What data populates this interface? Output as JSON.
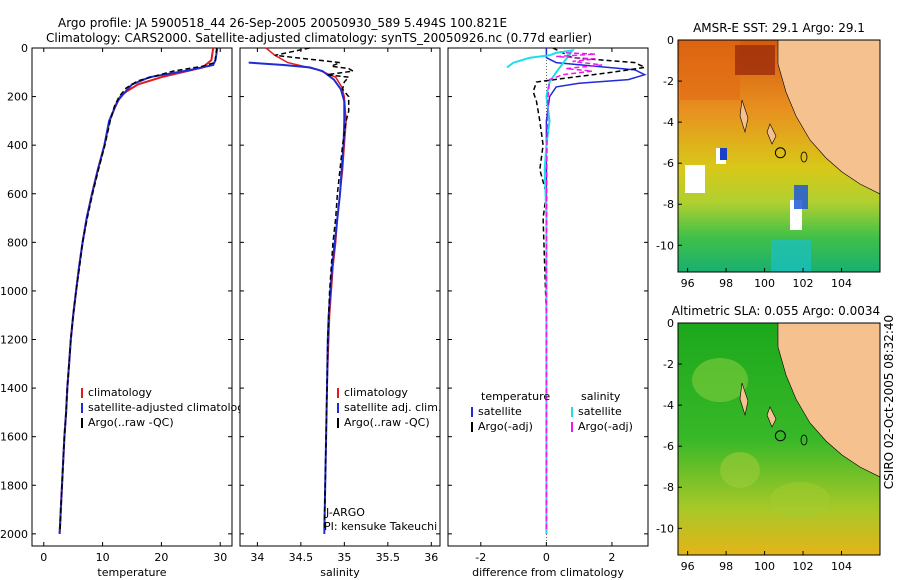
{
  "header": {
    "line1": "Argo profile: JA 5900518_44 26-Sep-2005 20050930_589 5.494S 100.821E",
    "line2": "Climatology: CARS2000. Satellite-adjusted climatology: synTS_20050926.nc (0.77d earlier)"
  },
  "footer": {
    "vertical_stamp": "CSIRO 02-Oct-2005 08:32:40",
    "float_program": "J-ARGO",
    "pi": "PI: kensuke Takeuchi"
  },
  "colors": {
    "climatology": "#e31a1c",
    "satellite": "#1f2bd6",
    "argo": "#000000",
    "temp_satellite_diff": "#19e0e8",
    "salt_argo_diff": "#ee18ee",
    "land": "#f5c28f"
  },
  "chart_data": [
    {
      "id": "temperature",
      "type": "line",
      "xlabel": "temperature",
      "ylabel": "",
      "xlim": [
        -2,
        32
      ],
      "ylim": [
        2050,
        0
      ],
      "xticks": [
        0,
        10,
        20,
        30
      ],
      "xtick_labels": [
        "0",
        "10",
        "20",
        "30"
      ],
      "yticks": [
        0,
        200,
        400,
        600,
        800,
        1000,
        1200,
        1400,
        1600,
        1800,
        2000
      ],
      "ytick_labels": [
        "0",
        "200",
        "400",
        "600",
        "800",
        "1000",
        "1200",
        "1400",
        "1600",
        "1800",
        "2000"
      ],
      "legend": [
        "climatology",
        "satellite-adjusted climatology",
        "Argo(..raw -QC)"
      ],
      "series": [
        {
          "name": "climatology",
          "style": "solid",
          "points": [
            [
              28.8,
              0
            ],
            [
              28.5,
              50
            ],
            [
              27,
              80
            ],
            [
              20,
              120
            ],
            [
              16,
              150
            ],
            [
              14,
              180
            ],
            [
              13,
              200
            ],
            [
              12,
              250
            ],
            [
              11.2,
              300
            ],
            [
              10.3,
              400
            ],
            [
              9.2,
              500
            ],
            [
              8.2,
              600
            ],
            [
              7.3,
              700
            ],
            [
              6.6,
              800
            ],
            [
              6,
              900
            ],
            [
              5.5,
              1000
            ],
            [
              5,
              1100
            ],
            [
              4.6,
              1200
            ],
            [
              4.3,
              1300
            ],
            [
              4,
              1400
            ],
            [
              3.8,
              1500
            ],
            [
              3.5,
              1600
            ],
            [
              3.3,
              1700
            ],
            [
              3.1,
              1800
            ],
            [
              2.9,
              1900
            ],
            [
              2.7,
              2000
            ]
          ]
        },
        {
          "name": "satellite-adjusted climatology",
          "style": "solid",
          "points": [
            [
              29.5,
              0
            ],
            [
              29.2,
              50
            ],
            [
              28.8,
              70
            ],
            [
              25,
              90
            ],
            [
              18,
              120
            ],
            [
              15,
              150
            ],
            [
              13.5,
              190
            ],
            [
              12.5,
              220
            ],
            [
              11.8,
              260
            ],
            [
              11.1,
              300
            ],
            [
              10.3,
              400
            ],
            [
              9.2,
              500
            ],
            [
              8.2,
              600
            ],
            [
              7.3,
              700
            ],
            [
              6.6,
              800
            ],
            [
              6,
              900
            ],
            [
              5.5,
              1000
            ],
            [
              5,
              1100
            ],
            [
              4.6,
              1200
            ],
            [
              4.3,
              1300
            ],
            [
              4,
              1400
            ],
            [
              3.8,
              1500
            ],
            [
              3.5,
              1600
            ],
            [
              3.3,
              1700
            ],
            [
              3.1,
              1800
            ],
            [
              2.9,
              1900
            ],
            [
              2.7,
              2000
            ]
          ]
        },
        {
          "name": "Argo(..raw -QC)",
          "style": "dashed",
          "points": [
            [
              29.4,
              0
            ],
            [
              29.1,
              60
            ],
            [
              27,
              75
            ],
            [
              22,
              95
            ],
            [
              16,
              135
            ],
            [
              14,
              165
            ],
            [
              12.8,
              200
            ],
            [
              12,
              240
            ],
            [
              11.3,
              300
            ],
            [
              10.4,
              400
            ],
            [
              9.3,
              500
            ],
            [
              8.3,
              600
            ],
            [
              7.4,
              700
            ],
            [
              6.6,
              800
            ],
            [
              6.1,
              900
            ],
            [
              5.5,
              1000
            ],
            [
              5,
              1100
            ],
            [
              4.6,
              1200
            ],
            [
              4.3,
              1300
            ],
            [
              4,
              1400
            ],
            [
              3.8,
              1500
            ],
            [
              3.5,
              1600
            ],
            [
              3.3,
              1700
            ],
            [
              3.1,
              1800
            ],
            [
              2.9,
              1900
            ],
            [
              2.8,
              1980
            ]
          ]
        }
      ]
    },
    {
      "id": "salinity",
      "type": "line",
      "xlabel": "salinity",
      "xlim": [
        33.8,
        36.1
      ],
      "ylim": [
        2050,
        0
      ],
      "xticks": [
        34,
        34.5,
        35,
        35.5,
        36
      ],
      "xtick_labels": [
        "34",
        "34.5",
        "35",
        "35.5",
        "36"
      ],
      "legend": [
        "climatology",
        "satellite adj. clim.",
        "Argo(..raw -QC)"
      ],
      "series": [
        {
          "name": "climatology",
          "style": "solid",
          "points": [
            [
              34.1,
              0
            ],
            [
              34.2,
              30
            ],
            [
              34.35,
              60
            ],
            [
              34.7,
              90
            ],
            [
              34.9,
              120
            ],
            [
              34.97,
              160
            ],
            [
              35,
              200
            ],
            [
              35.02,
              300
            ],
            [
              35,
              400
            ],
            [
              34.98,
              500
            ],
            [
              34.95,
              600
            ],
            [
              34.92,
              700
            ],
            [
              34.9,
              800
            ],
            [
              34.87,
              900
            ],
            [
              34.85,
              1000
            ],
            [
              34.83,
              1100
            ],
            [
              34.82,
              1200
            ],
            [
              34.8,
              1400
            ],
            [
              34.79,
              1600
            ],
            [
              34.78,
              1800
            ],
            [
              34.77,
              2000
            ]
          ]
        },
        {
          "name": "satellite adj. clim.",
          "style": "solid",
          "points": [
            [
              33.9,
              60
            ],
            [
              34.3,
              70
            ],
            [
              34.6,
              80
            ],
            [
              34.75,
              95
            ],
            [
              34.88,
              130
            ],
            [
              34.96,
              170
            ],
            [
              35,
              220
            ],
            [
              35,
              300
            ],
            [
              34.99,
              400
            ],
            [
              34.97,
              500
            ],
            [
              34.95,
              600
            ],
            [
              34.92,
              700
            ],
            [
              34.89,
              800
            ],
            [
              34.86,
              900
            ],
            [
              34.84,
              1000
            ],
            [
              34.82,
              1100
            ],
            [
              34.81,
              1200
            ],
            [
              34.8,
              1400
            ],
            [
              34.79,
              1600
            ],
            [
              34.78,
              1800
            ],
            [
              34.77,
              2000
            ]
          ]
        },
        {
          "name": "Argo(..raw -QC)",
          "style": "dashed",
          "points": [
            [
              34.6,
              0
            ],
            [
              34.2,
              30
            ],
            [
              34.95,
              60
            ],
            [
              34.85,
              75
            ],
            [
              35.05,
              85
            ],
            [
              35.1,
              95
            ],
            [
              34.8,
              110
            ],
            [
              35.05,
              120
            ],
            [
              35,
              140
            ],
            [
              34.98,
              170
            ],
            [
              35.05,
              200
            ],
            [
              35.05,
              260
            ],
            [
              35.02,
              300
            ],
            [
              34.98,
              400
            ],
            [
              34.95,
              500
            ],
            [
              34.92,
              600
            ],
            [
              34.9,
              700
            ],
            [
              34.87,
              800
            ],
            [
              34.85,
              900
            ],
            [
              34.83,
              1000
            ],
            [
              34.82,
              1100
            ],
            [
              34.81,
              1200
            ],
            [
              34.8,
              1400
            ],
            [
              34.79,
              1600
            ],
            [
              34.78,
              1800
            ],
            [
              34.77,
              1980
            ]
          ]
        }
      ]
    },
    {
      "id": "difference",
      "type": "line",
      "xlabel": "difference from climatology",
      "xlim": [
        -3,
        3.1
      ],
      "ylim": [
        2050,
        0
      ],
      "xticks": [
        -2,
        0,
        2
      ],
      "xtick_labels": [
        "-2",
        "0",
        "2"
      ],
      "legend_left_title": "temperature",
      "legend_right_title": "salinity",
      "legend": [
        "satellite",
        "Argo(-adj)",
        "satellite",
        "Argo(-adj)"
      ],
      "series": [
        {
          "name": "temperature satellite",
          "style": "solid",
          "points": [
            [
              0,
              0
            ],
            [
              0,
              40
            ],
            [
              0.3,
              60
            ],
            [
              1.5,
              75
            ],
            [
              2.7,
              90
            ],
            [
              3,
              110
            ],
            [
              2.5,
              130
            ],
            [
              1,
              145
            ],
            [
              0.3,
              160
            ],
            [
              0.1,
              200
            ],
            [
              0,
              300
            ],
            [
              0,
              2000
            ]
          ]
        },
        {
          "name": "temperature Argo(-adj)",
          "style": "dashed",
          "points": [
            [
              0.2,
              0
            ],
            [
              0.8,
              40
            ],
            [
              2.7,
              60
            ],
            [
              3,
              80
            ],
            [
              2,
              100
            ],
            [
              0.8,
              120
            ],
            [
              -0.3,
              140
            ],
            [
              -0.4,
              180
            ],
            [
              -0.3,
              220
            ],
            [
              -0.2,
              300
            ],
            [
              -0.1,
              400
            ],
            [
              -0.2,
              500
            ],
            [
              0,
              600
            ],
            [
              -0.1,
              700
            ],
            [
              -0.05,
              900
            ],
            [
              0,
              1100
            ],
            [
              0,
              1400
            ],
            [
              0,
              1700
            ],
            [
              0,
              1980
            ]
          ]
        },
        {
          "name": "salinity satellite",
          "style": "solid",
          "points": [
            [
              -1.2,
              80
            ],
            [
              -1,
              60
            ],
            [
              -0.5,
              40
            ],
            [
              0.1,
              30
            ],
            [
              0.3,
              20
            ],
            [
              0.8,
              10
            ],
            [
              0.3,
              100
            ],
            [
              0.1,
              140
            ],
            [
              0,
              200
            ],
            [
              0.1,
              300
            ],
            [
              0,
              400
            ],
            [
              -0.05,
              500
            ],
            [
              0,
              700
            ],
            [
              0,
              1000
            ],
            [
              0,
              1400
            ],
            [
              0,
              2000
            ]
          ]
        },
        {
          "name": "salinity Argo(-adj)",
          "style": "dashed",
          "points": [
            [
              0.6,
              20
            ],
            [
              1.5,
              25
            ],
            [
              0.3,
              35
            ],
            [
              1.5,
              45
            ],
            [
              0.8,
              55
            ],
            [
              1.7,
              70
            ],
            [
              0.6,
              85
            ],
            [
              1.4,
              95
            ],
            [
              0.5,
              110
            ],
            [
              0.1,
              130
            ],
            [
              0.05,
              200
            ],
            [
              0.02,
              400
            ],
            [
              0,
              800
            ],
            [
              0,
              1200
            ],
            [
              0,
              1600
            ],
            [
              0,
              1980
            ]
          ]
        }
      ]
    },
    {
      "id": "sst_map",
      "type": "heatmap",
      "title": "AMSR-E SST: 29.1 Argo: 29.1",
      "xlim": [
        95.5,
        106
      ],
      "ylim": [
        -11.3,
        0
      ],
      "xticks": [
        96,
        98,
        100,
        102,
        104
      ],
      "xtick_labels": [
        "96",
        "98",
        "100",
        "102",
        "104"
      ],
      "yticks": [
        0,
        -2,
        -4,
        -6,
        -8,
        -10
      ],
      "ytick_labels": [
        "0",
        "-2",
        "-4",
        "-6",
        "-8",
        "-10"
      ],
      "marker": {
        "lon": 100.821,
        "lat": -5.494
      }
    },
    {
      "id": "sla_map",
      "type": "heatmap",
      "title": "Altimetric SLA: 0.055 Argo: 0.0034",
      "xlim": [
        95.5,
        106
      ],
      "ylim": [
        -11.3,
        0
      ],
      "xticks": [
        96,
        98,
        100,
        102,
        104
      ],
      "xtick_labels": [
        "96",
        "98",
        "100",
        "102",
        "104"
      ],
      "yticks": [
        0,
        -2,
        -4,
        -6,
        -8,
        -10
      ],
      "ytick_labels": [
        "0",
        "-2",
        "-4",
        "-6",
        "-8",
        "-10"
      ],
      "marker": {
        "lon": 100.821,
        "lat": -5.494
      }
    }
  ]
}
